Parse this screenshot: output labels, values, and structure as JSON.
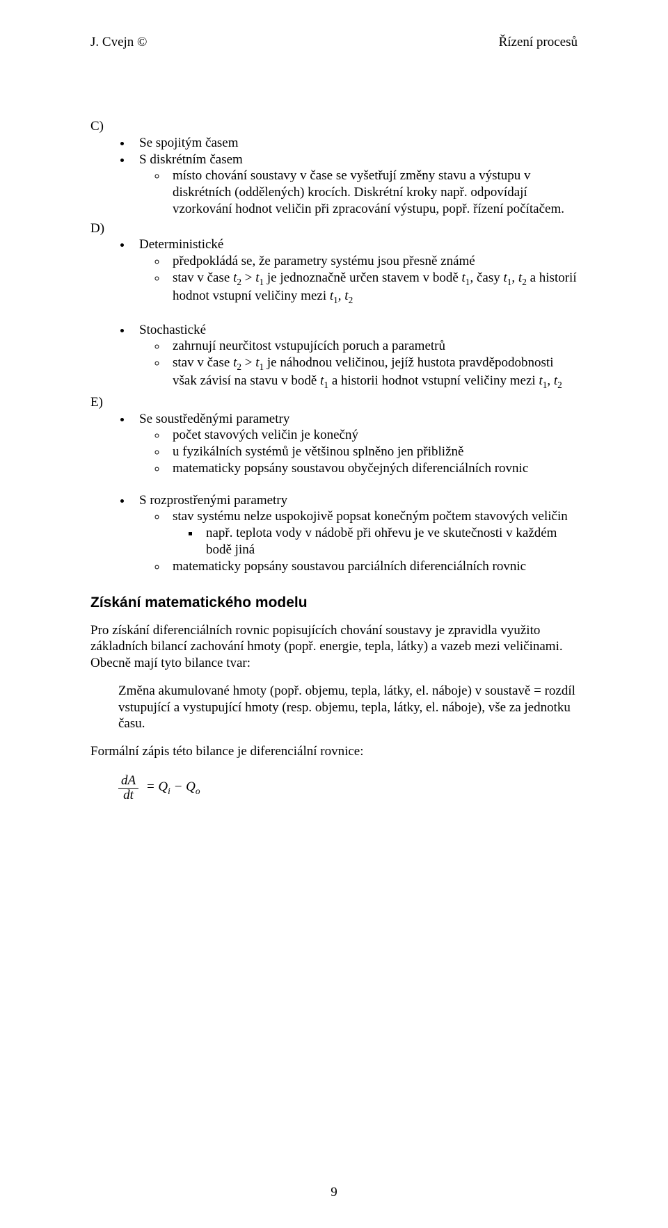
{
  "header": {
    "left": "J. Cvejn ©",
    "right": "Řízení procesů"
  },
  "C": {
    "label": "C)",
    "items": [
      {
        "text": "Se spojitým časem"
      },
      {
        "text": "S diskrétním časem",
        "sub": [
          "místo chování soustavy v čase se vyšetřují změny stavu a výstupu v diskrétních (oddělených) krocích. Diskrétní kroky např. odpovídají vzorkování hodnot veličin při zpracování výstupu, popř. řízení počítačem."
        ]
      }
    ]
  },
  "D": {
    "label": "D)",
    "det_title": "Deterministické",
    "det_sub0": "předpokládá se, že parametry systému jsou přesně známé",
    "det_sub1_a": "stav v čase ",
    "det_sub1_b": " je jednoznačně určen stavem v bodě ",
    "det_sub1_c": ", časy ",
    "det_sub1_d": " a historií hodnot vstupní veličiny mezi ",
    "stoch_title": "Stochastické",
    "stoch_sub0": "zahrnují neurčitost vstupujících poruch a parametrů",
    "stoch_sub1_a": "stav v čase ",
    "stoch_sub1_b": " je náhodnou veličinou, jejíž hustota pravděpodobnosti však závisí na stavu v bodě ",
    "stoch_sub1_c": " a historii hodnot vstupní veličiny mezi "
  },
  "E": {
    "label": "E)",
    "conc_title": "Se soustředěnými parametry",
    "conc_sub": [
      "počet stavových veličin je konečný",
      "u fyzikálních systémů je většinou splněno jen přibližně",
      "matematicky popsány soustavou obyčejných diferenciálních rovnic"
    ],
    "dist_title": "S rozprostřenými parametry",
    "dist_sub0": "stav systému nelze uspokojivě popsat konečným počtem stavových veličin",
    "dist_sub0_b3": "např. teplota vody v nádobě při ohřevu je ve skutečnosti v každém bodě jiná",
    "dist_sub1": "matematicky popsány soustavou parciálních diferenciálních rovnic"
  },
  "model": {
    "heading": "Získání matematického modelu",
    "p1": "Pro získání diferenciálních rovnic popisujících chování soustavy je zpravidla využito základních bilancí zachování hmoty (popř. energie, tepla, látky) a vazeb mezi veličinami. Obecně mají tyto bilance tvar:",
    "p2": "Změna akumulované hmoty (popř. objemu, tepla, látky, el. náboje) v soustavě = rozdíl vstupující a vystupující hmoty (resp. objemu, tepla, látky, el. náboje), vše za jednotku času.",
    "p3": "Formální zápis této bilance je diferenciální rovnice:",
    "frac_num": "dA",
    "frac_den": "dt",
    "eq_a": "= Q",
    "eq_i": "i",
    "eq_m": " − Q",
    "eq_o": "o"
  },
  "math": {
    "t": "t",
    "sub1": "1",
    "sub2": "2",
    "gt": " > ",
    "comma": ", "
  },
  "pageNumber": "9"
}
